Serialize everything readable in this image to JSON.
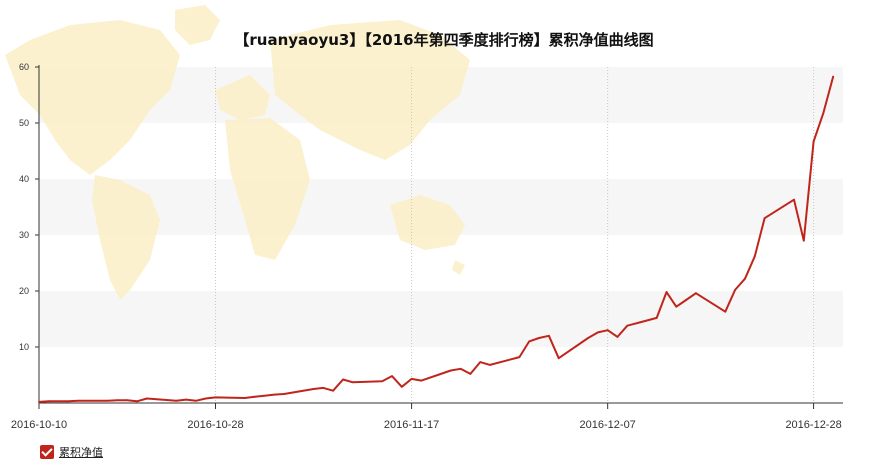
{
  "chart_data": {
    "type": "line",
    "title": "【ruanyaoyu3】【2016年第四季度排行榜】累积净值曲线图",
    "ylim": [
      0,
      60
    ],
    "yticks": [
      10,
      20,
      30,
      40,
      50,
      60
    ],
    "ytick_labels": [
      "10",
      "20",
      "30",
      "40",
      "50",
      "60"
    ],
    "xrange": [
      "2016-10-10",
      "2016-12-31"
    ],
    "xticks": [
      "2016-10-10",
      "2016-10-28",
      "2016-11-17",
      "2016-12-07",
      "2016-12-28"
    ],
    "grid": "horizontal bands, dotted vertical lines at date ticks",
    "legend_position": "bottom-left",
    "series": [
      {
        "name": "累积净值",
        "color": "#c0251b",
        "points": [
          [
            "2016-10-10",
            0.2
          ],
          [
            "2016-10-11",
            0.3
          ],
          [
            "2016-10-13",
            0.3
          ],
          [
            "2016-10-14",
            0.4
          ],
          [
            "2016-10-17",
            0.4
          ],
          [
            "2016-10-18",
            0.5
          ],
          [
            "2016-10-19",
            0.5
          ],
          [
            "2016-10-20",
            0.3
          ],
          [
            "2016-10-21",
            0.8
          ],
          [
            "2016-10-24",
            0.4
          ],
          [
            "2016-10-25",
            0.6
          ],
          [
            "2016-10-26",
            0.4
          ],
          [
            "2016-10-27",
            0.8
          ],
          [
            "2016-10-28",
            1.0
          ],
          [
            "2016-10-31",
            0.9
          ],
          [
            "2016-11-01",
            1.1
          ],
          [
            "2016-11-02",
            1.3
          ],
          [
            "2016-11-03",
            1.5
          ],
          [
            "2016-11-04",
            1.6
          ],
          [
            "2016-11-07",
            2.5
          ],
          [
            "2016-11-08",
            2.7
          ],
          [
            "2016-11-09",
            2.2
          ],
          [
            "2016-11-10",
            4.2
          ],
          [
            "2016-11-11",
            3.7
          ],
          [
            "2016-11-14",
            3.9
          ],
          [
            "2016-11-15",
            4.8
          ],
          [
            "2016-11-16",
            2.9
          ],
          [
            "2016-11-17",
            4.3
          ],
          [
            "2016-11-18",
            4.0
          ],
          [
            "2016-11-21",
            5.8
          ],
          [
            "2016-11-22",
            6.1
          ],
          [
            "2016-11-23",
            5.2
          ],
          [
            "2016-11-24",
            7.3
          ],
          [
            "2016-11-25",
            6.8
          ],
          [
            "2016-11-28",
            8.2
          ],
          [
            "2016-11-29",
            11.0
          ],
          [
            "2016-11-30",
            11.6
          ],
          [
            "2016-12-01",
            12.0
          ],
          [
            "2016-12-02",
            8.0
          ],
          [
            "2016-12-05",
            11.6
          ],
          [
            "2016-12-06",
            12.6
          ],
          [
            "2016-12-07",
            13.0
          ],
          [
            "2016-12-08",
            11.8
          ],
          [
            "2016-12-09",
            13.8
          ],
          [
            "2016-12-12",
            15.2
          ],
          [
            "2016-12-13",
            19.8
          ],
          [
            "2016-12-14",
            17.2
          ],
          [
            "2016-12-15",
            18.4
          ],
          [
            "2016-12-16",
            19.6
          ],
          [
            "2016-12-19",
            16.3
          ],
          [
            "2016-12-20",
            20.2
          ],
          [
            "2016-12-21",
            22.2
          ],
          [
            "2016-12-22",
            26.2
          ],
          [
            "2016-12-23",
            33.0
          ],
          [
            "2016-12-26",
            36.3
          ],
          [
            "2016-12-27",
            29.0
          ],
          [
            "2016-12-28",
            46.7
          ],
          [
            "2016-12-29",
            51.8
          ],
          [
            "2016-12-30",
            58.3
          ]
        ]
      }
    ]
  },
  "legend": {
    "label": "累积净值",
    "checked": true,
    "color": "#c0251b"
  },
  "colors": {
    "band": "#f6f6f6",
    "axis": "#333333",
    "map": "#fbefc6"
  }
}
